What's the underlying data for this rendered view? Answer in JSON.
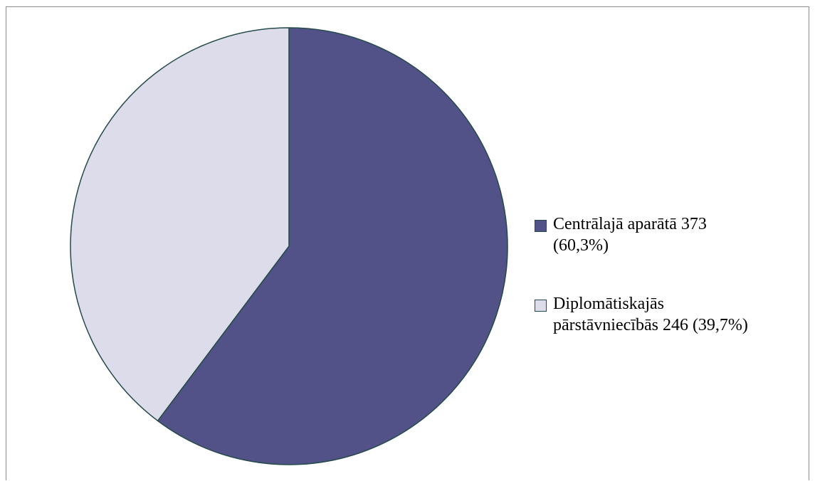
{
  "chart_data": {
    "type": "pie",
    "title": "",
    "legend_position": "right",
    "slices": [
      {
        "label": "Centrālajā aparātā 373 (60,3%)",
        "label_lines": [
          "Centrālajā aparātā 373",
          "(60,3%)"
        ],
        "value": 373,
        "percent": 60.3,
        "color": "#525288"
      },
      {
        "label": "Diplomātiskajās pārstāvniecībās 246 (39,7%)",
        "label_lines": [
          "Diplomātiskajās",
          "pārstāvniecībās 246 (39,7%)"
        ],
        "value": 246,
        "percent": 39.7,
        "color": "#dcdcea"
      }
    ],
    "slice_border_color": "#254a4a"
  }
}
